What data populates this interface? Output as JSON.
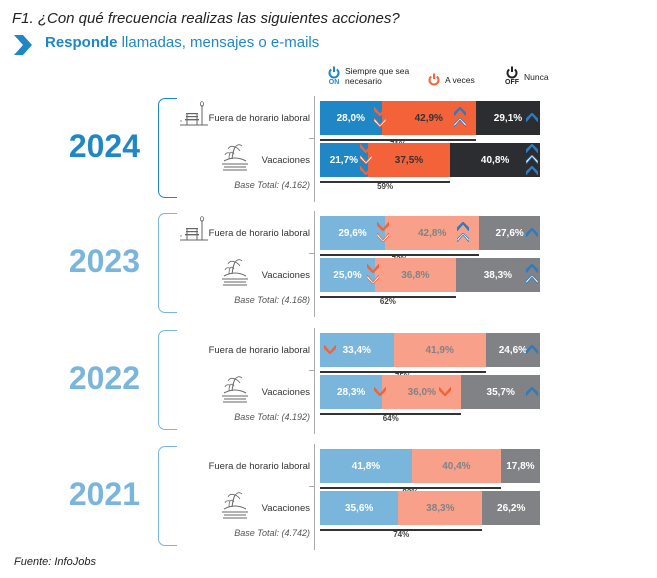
{
  "header": {
    "title": "F1. ¿Con qué frecuencia realizas las siguientes acciones?",
    "subtitle_bold": "Responde",
    "subtitle_rest": " llamadas, mensajes o e-mails"
  },
  "legend": [
    {
      "label_line1": "Siempre que sea",
      "label_line2": "necesario",
      "icon": "power-on-icon",
      "badge": "ON",
      "color": "#1f87c6"
    },
    {
      "label_line1": "A veces",
      "label_line2": "",
      "icon": "power-icon",
      "badge": "",
      "color": "#f4623a"
    },
    {
      "label_line1": "Nunca",
      "label_line2": "",
      "icon": "power-off-icon",
      "badge": "OFF",
      "color": "#222222"
    }
  ],
  "colors": {
    "current": {
      "year": "#1f87c6",
      "siempre": "#1f87c6",
      "aveces": "#f4623a",
      "nunca": "#2b2d30",
      "text_light": "#ffffff",
      "text_dark": "#333333"
    },
    "past": {
      "year": "#7ab6db",
      "siempre": "#7ab6db",
      "aveces": "#f9a08a",
      "nunca": "#808285",
      "text_light": "#ffffff",
      "text_dark": "#808285"
    },
    "arrow_up": "#2f7bbf",
    "arrow_down": "#f4623a"
  },
  "footer": "Fuente: InfoJobs",
  "chart_data": {
    "type": "bar",
    "orientation": "horizontal-stacked-100",
    "title": "F1. ¿Con qué frecuencia realizas las siguientes acciones?",
    "subtitle": "Responde llamadas, mensajes o e-mails",
    "series_names": [
      "Siempre que sea necesario",
      "A veces",
      "Nunca"
    ],
    "xlim": [
      0,
      100
    ],
    "unit": "%",
    "groups": [
      {
        "year": "2024",
        "base": "Base Total: (4.162)",
        "style": "current",
        "rows": [
          {
            "label": "Fuera de horario laboral",
            "icon": "park-bench-icon",
            "values": [
              28.0,
              42.9,
              29.1
            ],
            "labels": [
              "28,0%",
              "42,9%",
              "29,1%"
            ],
            "sum_label": "71%",
            "arrows": [
              {
                "after_seg": 0,
                "dir": "down",
                "count": 2
              },
              {
                "after_seg": 1,
                "dir": "up",
                "count": 2
              },
              {
                "after_seg": 2,
                "dir": "up",
                "count": 1
              }
            ]
          },
          {
            "label": "Vacaciones",
            "icon": "island-icon",
            "values": [
              21.7,
              37.5,
              40.8
            ],
            "labels": [
              "21,7%",
              "37,5%",
              "40,8%"
            ],
            "sum_label": "59%",
            "arrows": [
              {
                "after_seg": 0,
                "dir": "down",
                "count": 3
              },
              {
                "after_seg": 2,
                "dir": "up",
                "count": 3
              }
            ]
          }
        ]
      },
      {
        "year": "2023",
        "base": "Base Total: (4.168)",
        "style": "past",
        "rows": [
          {
            "label": "Fuera de horario laboral",
            "icon": "park-bench-icon",
            "values": [
              29.6,
              42.8,
              27.6
            ],
            "labels": [
              "29,6%",
              "42,8%",
              "27,6%"
            ],
            "sum_label": "72%",
            "arrows": [
              {
                "after_seg": 0,
                "dir": "down",
                "count": 2
              },
              {
                "after_seg": 1,
                "dir": "up",
                "count": 2
              },
              {
                "after_seg": 2,
                "dir": "up",
                "count": 1
              }
            ]
          },
          {
            "label": "Vacaciones",
            "icon": "island-icon",
            "values": [
              25.0,
              36.8,
              38.3
            ],
            "labels": [
              "25,0%",
              "36,8%",
              "38,3%"
            ],
            "sum_label": "62%",
            "arrows": [
              {
                "after_seg": 0,
                "dir": "down",
                "count": 2
              },
              {
                "after_seg": 2,
                "dir": "up",
                "count": 2
              }
            ]
          }
        ]
      },
      {
        "year": "2022",
        "base": "Base Total: (4.192)",
        "style": "past",
        "rows": [
          {
            "label": "Fuera de horario laboral",
            "icon": "",
            "values": [
              33.4,
              41.9,
              24.6
            ],
            "labels": [
              "33,4%",
              "41,9%",
              "24,6%"
            ],
            "sum_label": "75%",
            "arrows": [
              {
                "after_seg": -1,
                "dir": "down",
                "count": 1
              },
              {
                "after_seg": 2,
                "dir": "up",
                "count": 1
              }
            ]
          },
          {
            "label": "Vacaciones",
            "icon": "island-icon",
            "values": [
              28.3,
              36.0,
              35.7
            ],
            "labels": [
              "28,3%",
              "36,0%",
              "35,7%"
            ],
            "sum_label": "64%",
            "arrows": [
              {
                "after_seg": 0,
                "dir": "down",
                "count": 1
              },
              {
                "after_seg": 1,
                "dir": "down",
                "count": 1
              },
              {
                "after_seg": 2,
                "dir": "up",
                "count": 1
              }
            ]
          }
        ]
      },
      {
        "year": "2021",
        "base": "Base Total: (4.742)",
        "style": "past",
        "rows": [
          {
            "label": "Fuera de horario laboral",
            "icon": "",
            "values": [
              41.8,
              40.4,
              17.8
            ],
            "labels": [
              "41,8%",
              "40,4%",
              "17,8%"
            ],
            "sum_label": "82%",
            "arrows": []
          },
          {
            "label": "Vacaciones",
            "icon": "island-icon",
            "values": [
              35.6,
              38.3,
              26.2
            ],
            "labels": [
              "35,6%",
              "38,3%",
              "26,2%"
            ],
            "sum_label": "74%",
            "arrows": []
          }
        ]
      }
    ]
  }
}
